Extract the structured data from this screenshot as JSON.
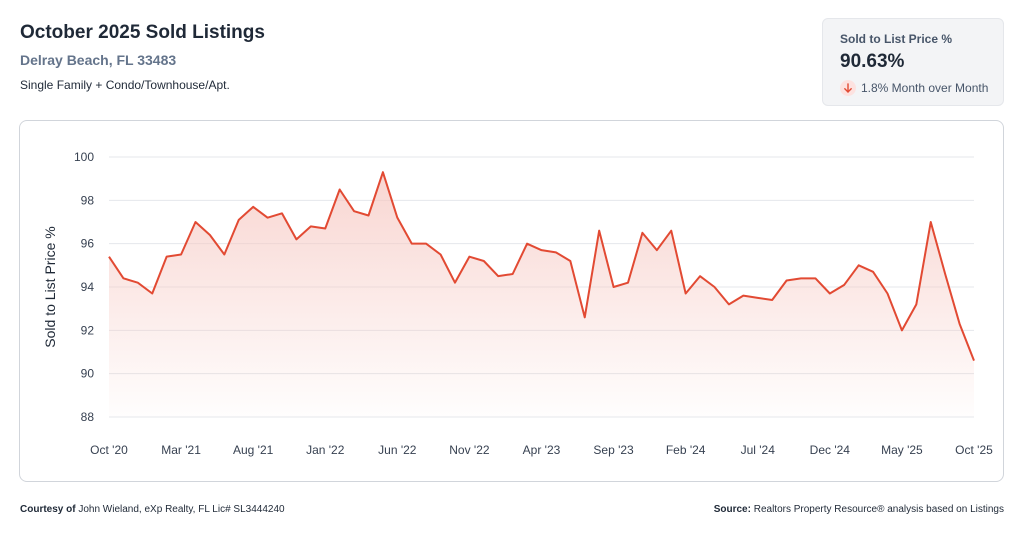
{
  "header": {
    "title": "October 2025 Sold Listings",
    "location": "Delray Beach, FL 33483",
    "property_type": "Single Family + Condo/Townhouse/Apt."
  },
  "kpi": {
    "label": "Sold to List Price %",
    "value": "90.63%",
    "change": "1.8% Month over Month",
    "direction_icon": "arrow-down-icon",
    "icon_color": "#e24a33"
  },
  "footer": {
    "courtesy_label": "Courtesy of",
    "courtesy_text": "John Wieland, eXp Realty, FL Lic# SL3444240",
    "source_label": "Source:",
    "source_text": "Realtors Property Resource® analysis based on Listings"
  },
  "chart_data": {
    "type": "area",
    "ylabel": "Sold to List Price %",
    "xlabel": "",
    "ylim": [
      88,
      100
    ],
    "yticks": [
      100,
      98,
      96,
      94,
      92,
      90,
      88
    ],
    "x_tick_labels": [
      "Oct '20",
      "Mar '21",
      "Aug '21",
      "Jan '22",
      "Jun '22",
      "Nov '22",
      "Apr '23",
      "Sep '23",
      "Feb '24",
      "Jul '24",
      "Dec '24",
      "May '25",
      "Oct '25"
    ],
    "x_tick_month_index": [
      0,
      5,
      10,
      15,
      20,
      25,
      30,
      35,
      40,
      45,
      50,
      55,
      60
    ],
    "line_color": "#e24a33",
    "fill_color": "#f6c8c2",
    "grid": true,
    "series": [
      {
        "values": [
          95.4,
          94.4,
          94.2,
          93.7,
          95.4,
          95.5,
          97.0,
          96.4,
          95.5,
          97.1,
          97.7,
          97.2,
          97.4,
          96.2,
          96.8,
          96.7,
          98.5,
          97.5,
          97.3,
          99.3,
          97.2,
          96.0,
          96.0,
          95.5,
          94.2,
          95.4,
          95.2,
          94.5,
          94.6,
          96.0,
          95.7,
          95.6,
          95.2,
          92.6,
          96.6,
          94.0,
          94.2,
          96.5,
          95.7,
          96.6,
          93.7,
          94.5,
          94.0,
          93.2,
          93.6,
          93.5,
          93.4,
          94.3,
          94.4,
          94.4,
          93.7,
          94.1,
          95.0,
          94.7,
          93.7,
          92.0,
          93.2,
          97.0,
          94.6,
          92.3,
          90.6
        ]
      }
    ]
  }
}
